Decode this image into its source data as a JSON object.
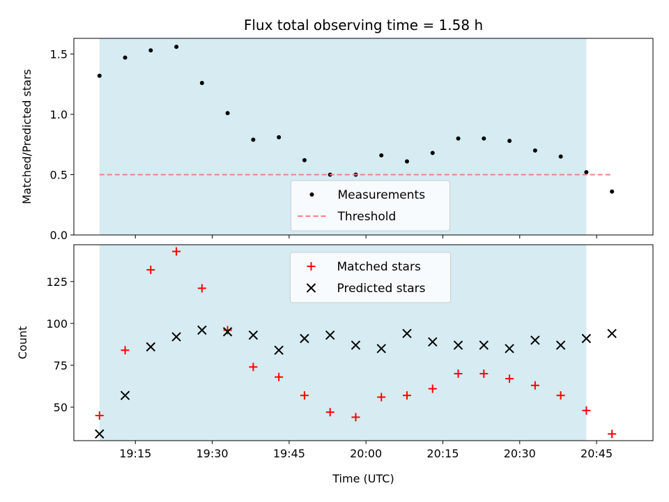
{
  "chart_data": [
    {
      "type": "scatter",
      "title": "Flux total observing time = 1.58 h",
      "xlabel": "",
      "ylabel": "Matched/Predicted stars",
      "ylim": [
        0,
        1.63
      ],
      "yticks": [
        0.0,
        0.5,
        1.0,
        1.5
      ],
      "ytick_labels": [
        "0.0",
        "0.5",
        "1.0",
        "1.5"
      ],
      "shaded_region": {
        "x_start": "19:08",
        "x_end": "20:43",
        "color": "#add8e6"
      },
      "legend": {
        "position": "bottom-center"
      },
      "series": [
        {
          "name": "Measurements",
          "marker": "dot",
          "color": "#000000",
          "x": [
            "19:08",
            "19:13",
            "19:18",
            "19:23",
            "19:28",
            "19:33",
            "19:38",
            "19:43",
            "19:48",
            "19:53",
            "19:58",
            "20:03",
            "20:08",
            "20:13",
            "20:18",
            "20:23",
            "20:28",
            "20:33",
            "20:38",
            "20:43",
            "20:48"
          ],
          "values": [
            1.32,
            1.47,
            1.53,
            1.56,
            1.26,
            1.01,
            0.79,
            0.81,
            0.62,
            0.5,
            0.5,
            0.66,
            0.61,
            0.68,
            0.8,
            0.8,
            0.78,
            0.7,
            0.65,
            0.52,
            0.36
          ]
        },
        {
          "name": "Threshold",
          "marker": "dashed-line",
          "color": "#f08080",
          "x": [
            "19:08",
            "20:48"
          ],
          "values": [
            0.5,
            0.5
          ]
        }
      ]
    },
    {
      "type": "scatter",
      "title": "",
      "xlabel": "Time (UTC)",
      "ylabel": "Count",
      "ylim": [
        30,
        147
      ],
      "yticks": [
        50,
        75,
        100,
        125
      ],
      "ytick_labels": [
        "50",
        "75",
        "100",
        "125"
      ],
      "xticks": [
        "19:15",
        "19:30",
        "19:45",
        "20:00",
        "20:15",
        "20:30",
        "20:45"
      ],
      "xlim": [
        "19:03",
        "20:56"
      ],
      "shaded_region": {
        "x_start": "19:08",
        "x_end": "20:43",
        "color": "#add8e6"
      },
      "legend": {
        "position": "top-center"
      },
      "series": [
        {
          "name": "Matched stars",
          "marker": "plus",
          "color": "#ff0000",
          "x": [
            "19:08",
            "19:13",
            "19:18",
            "19:23",
            "19:28",
            "19:33",
            "19:38",
            "19:43",
            "19:48",
            "19:53",
            "19:58",
            "20:03",
            "20:08",
            "20:13",
            "20:18",
            "20:23",
            "20:28",
            "20:33",
            "20:38",
            "20:43",
            "20:48"
          ],
          "values": [
            45,
            84,
            132,
            143,
            121,
            96,
            74,
            68,
            57,
            47,
            44,
            56,
            57,
            61,
            70,
            70,
            67,
            63,
            57,
            48,
            34
          ]
        },
        {
          "name": "Predicted stars",
          "marker": "x",
          "color": "#000000",
          "x": [
            "19:08",
            "19:13",
            "19:18",
            "19:23",
            "19:28",
            "19:33",
            "19:38",
            "19:43",
            "19:48",
            "19:53",
            "19:58",
            "20:03",
            "20:08",
            "20:13",
            "20:18",
            "20:23",
            "20:28",
            "20:33",
            "20:38",
            "20:43",
            "20:48"
          ],
          "values": [
            34,
            57,
            86,
            92,
            96,
            95,
            93,
            84,
            91,
            93,
            87,
            85,
            94,
            89,
            87,
            87,
            85,
            90,
            87,
            91,
            94
          ]
        }
      ]
    }
  ]
}
